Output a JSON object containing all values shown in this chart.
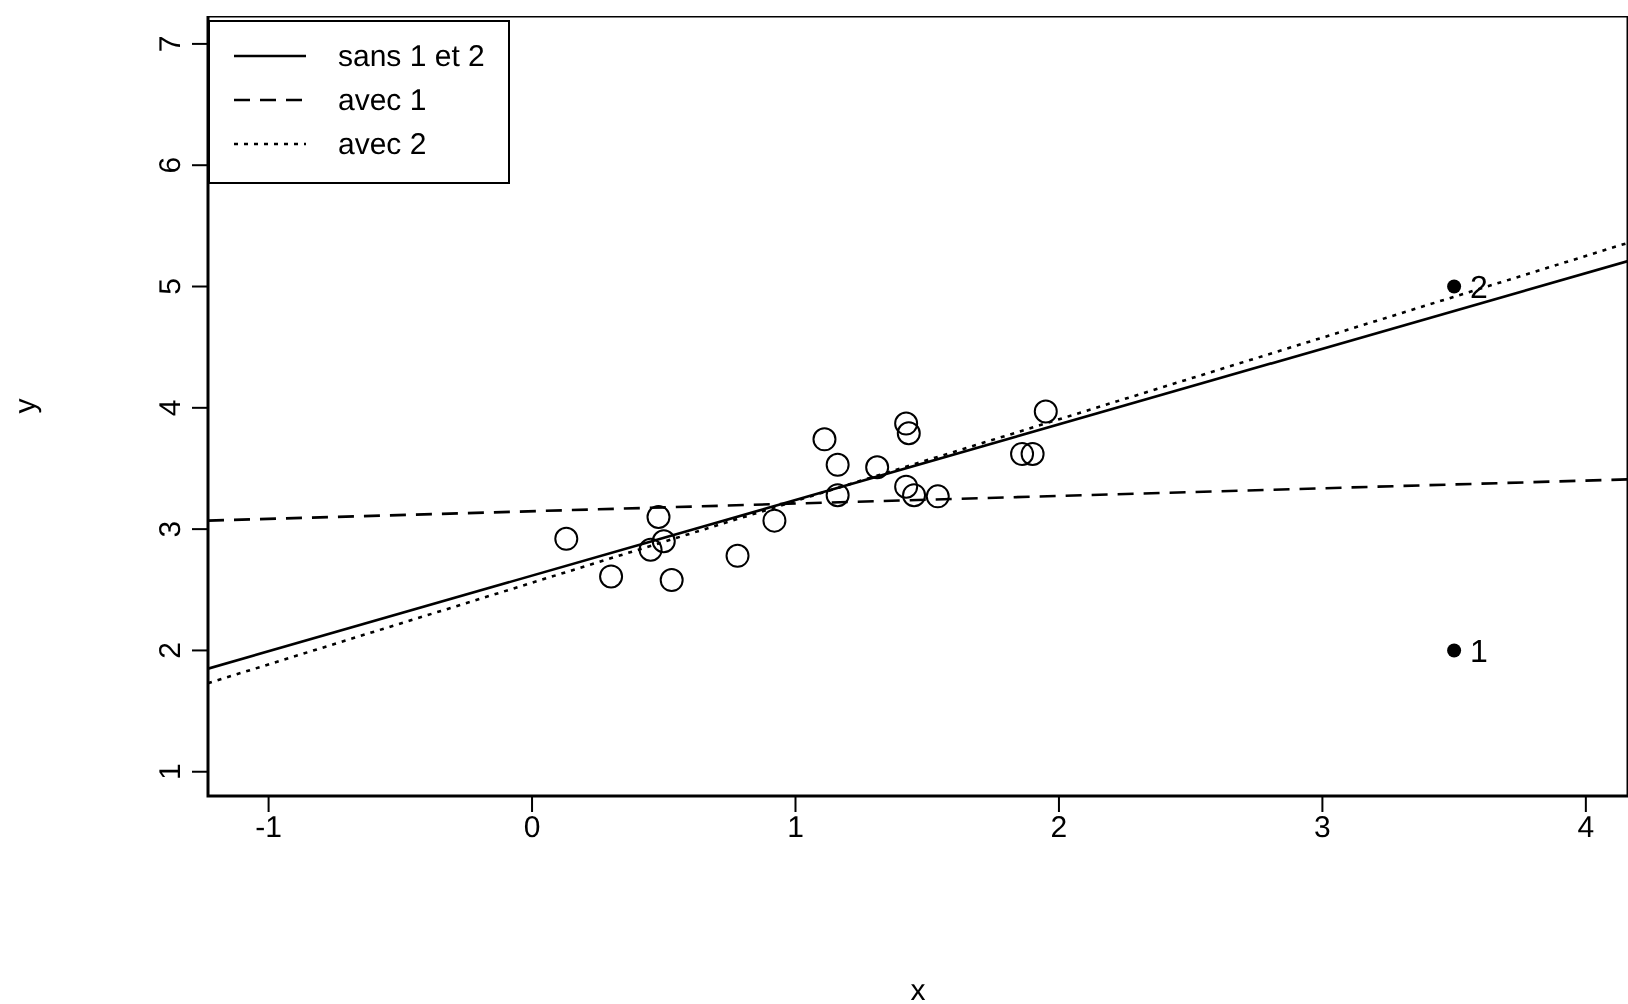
{
  "chart_data": {
    "type": "scatter",
    "xlabel": "x",
    "ylabel": "y",
    "xlim": [
      -1.23,
      4.16
    ],
    "ylim": [
      0.8,
      7.23
    ],
    "xticks": [
      -1,
      0,
      1,
      2,
      3,
      4
    ],
    "yticks": [
      1,
      2,
      3,
      4,
      5,
      6,
      7
    ],
    "legend": "top left",
    "series": [
      {
        "marker": "circle",
        "color": "#000000",
        "x": [
          0.13,
          0.3,
          0.48,
          0.45,
          0.5,
          0.53,
          0.78,
          0.92,
          1.11,
          1.16,
          1.16,
          1.31,
          1.42,
          1.43,
          1.42,
          1.45,
          1.54,
          1.86,
          1.9,
          1.95
        ],
        "values": [
          2.92,
          2.61,
          3.1,
          2.83,
          2.9,
          2.58,
          2.78,
          3.07,
          3.74,
          3.53,
          3.28,
          3.51,
          3.87,
          3.79,
          3.35,
          3.28,
          3.27,
          3.62,
          3.62,
          3.97
        ]
      },
      {
        "marker": "circle",
        "color": "#000000",
        "x": [
          3.5,
          3.5
        ],
        "values": [
          2,
          5
        ]
      },
      {
        "type": "line",
        "name": "sans 1 et 2",
        "color": "#000000",
        "line_style": "solid",
        "x": [
          -1.23,
          4.16
        ],
        "values": [
          1.85,
          5.21
        ]
      },
      {
        "type": "line",
        "name": "avec 1",
        "color": "#000000",
        "line_style": "dashed",
        "x": [
          -1.23,
          4.16
        ],
        "values": [
          3.07,
          3.41
        ]
      },
      {
        "type": "line",
        "name": "avec 2",
        "color": "#000000",
        "line_style": "dotted",
        "x": [
          -1.23,
          4.16
        ],
        "values": [
          1.73,
          5.36
        ]
      }
    ],
    "annotations": [
      {
        "text": "1",
        "x": 3.5,
        "y": 2
      },
      {
        "text": "2",
        "x": 3.5,
        "y": 5
      }
    ]
  }
}
